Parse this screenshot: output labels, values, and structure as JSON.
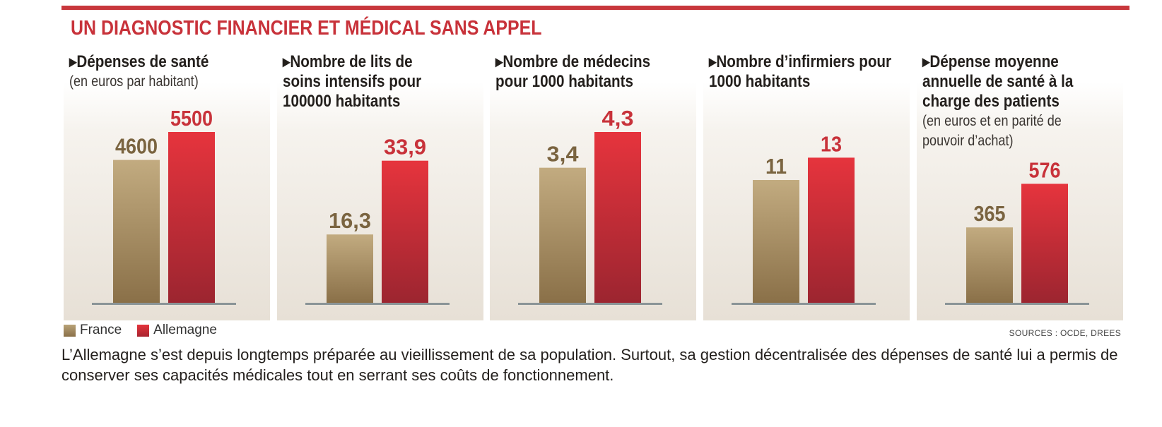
{
  "title": "UN DIAGNOSTIC FINANCIER ET MÉDICAL SANS APPEL",
  "colors": {
    "accent": "#c8373c",
    "france": "#a08964",
    "allemagne": "#d3303a",
    "axis": "#8a9497"
  },
  "legend": [
    {
      "label": "France",
      "color": "#a08964"
    },
    {
      "label": "Allemagne",
      "color": "#d3303a"
    }
  ],
  "sources": "SOURCES : OCDE, DREES",
  "caption": "L’Allemagne s’est depuis longtemps préparée au vieillissement de sa population. Surtout, sa gestion décentralisée des dépenses de santé lui a permis de conserver ses capacités médicales tout en serrant ses coûts de fonctionnement.",
  "panels": [
    {
      "title": "▸Dépenses de santé",
      "subtitle": "(en euros par habitant)"
    },
    {
      "title": "▸Nombre de lits de\nsoins intensifs pour\n100000 habitants",
      "subtitle": ""
    },
    {
      "title": "▸Nombre de médecins\npour 1000 habitants",
      "subtitle": ""
    },
    {
      "title": "▸Nombre d’infirmiers pour\n1000 habitants",
      "subtitle": ""
    },
    {
      "title": "▸Dépense moyenne\nannuelle de santé à la\ncharge des patients",
      "subtitle": "(en euros et en parité de\npouvoir d’achat)"
    }
  ],
  "chart_data": [
    {
      "type": "bar",
      "title": "▸Dépenses de santé",
      "subtitle": "(en euros par habitant)",
      "categories": [
        "France",
        "Allemagne"
      ],
      "values": [
        4600,
        5500
      ],
      "labels": [
        "4600",
        "5500"
      ],
      "ylim": [
        0,
        5500
      ]
    },
    {
      "type": "bar",
      "title": "▸Nombre de lits de soins intensifs pour 100000 habitants",
      "categories": [
        "France",
        "Allemagne"
      ],
      "values": [
        16.3,
        33.9
      ],
      "labels": [
        "16,3",
        "33,9"
      ],
      "ylim": [
        0,
        40.75
      ]
    },
    {
      "type": "bar",
      "title": "▸Nombre de médecins pour 1000 habitants",
      "categories": [
        "France",
        "Allemagne"
      ],
      "values": [
        3.4,
        4.3
      ],
      "labels": [
        "3,4",
        "4,3"
      ],
      "ylim": [
        0,
        4.3
      ]
    },
    {
      "type": "bar",
      "title": "▸Nombre d’infirmiers pour 1000 habitants",
      "categories": [
        "France",
        "Allemagne"
      ],
      "values": [
        11,
        13
      ],
      "labels": [
        "11",
        "13"
      ],
      "ylim": [
        0,
        15.3
      ]
    },
    {
      "type": "bar",
      "title": "▸Dépense moyenne annuelle de santé à la charge des patients",
      "subtitle": "(en euros et en parité de pouvoir d’achat)",
      "categories": [
        "France",
        "Allemagne"
      ],
      "values": [
        365,
        576
      ],
      "labels": [
        "365",
        "576"
      ],
      "ylim": [
        0,
        827
      ]
    }
  ]
}
